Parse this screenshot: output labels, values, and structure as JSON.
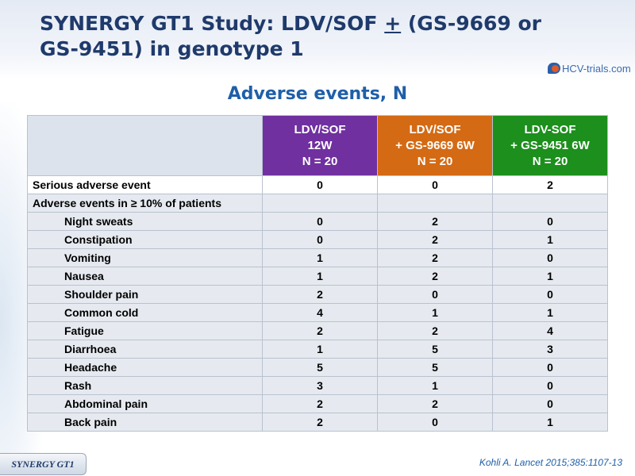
{
  "title": {
    "part1": "SYNERGY GT1 Study: LDV/SOF ",
    "plus": "+",
    "part2": " (GS-9669 or GS-9451) in genotype 1"
  },
  "logo": {
    "text": "HCV-trials.com"
  },
  "subtitle": "Adverse events, N",
  "colors": {
    "purple": "#7030a0",
    "orange": "#d46a14",
    "green": "#1c8f1c",
    "title": "#1f3a6b"
  },
  "table": {
    "columns": [
      {
        "line1": "LDV/SOF",
        "line2": "12W",
        "line3": "N = 20"
      },
      {
        "line1": "LDV/SOF",
        "line2": "+ GS-9669 6W",
        "line3": "N = 20"
      },
      {
        "line1": "LDV-SOF",
        "line2": "+ GS-9451 6W",
        "line3": "N = 20"
      }
    ],
    "rows": [
      {
        "label": "Serious adverse event",
        "values": [
          "0",
          "0",
          "2"
        ]
      },
      {
        "label": "Adverse events in ≥ 10% of patients",
        "values": [
          "",
          "",
          ""
        ]
      },
      {
        "label": "Night sweats",
        "values": [
          "0",
          "2",
          "0"
        ]
      },
      {
        "label": "Constipation",
        "values": [
          "0",
          "2",
          "1"
        ]
      },
      {
        "label": "Vomiting",
        "values": [
          "1",
          "2",
          "0"
        ]
      },
      {
        "label": "Nausea",
        "values": [
          "1",
          "2",
          "1"
        ]
      },
      {
        "label": "Shoulder pain",
        "values": [
          "2",
          "0",
          "0"
        ]
      },
      {
        "label": "Common cold",
        "values": [
          "4",
          "1",
          "1"
        ]
      },
      {
        "label": "Fatigue",
        "values": [
          "2",
          "2",
          "4"
        ]
      },
      {
        "label": "Diarrhoea",
        "values": [
          "1",
          "5",
          "3"
        ]
      },
      {
        "label": "Headache",
        "values": [
          "5",
          "5",
          "0"
        ]
      },
      {
        "label": "Rash",
        "values": [
          "3",
          "1",
          "0"
        ]
      },
      {
        "label": "Abdominal pain",
        "values": [
          "2",
          "2",
          "0"
        ]
      },
      {
        "label": "Back pain",
        "values": [
          "2",
          "0",
          "1"
        ]
      }
    ]
  },
  "footer": {
    "tag": "SYNERGY GT1",
    "citation": "Kohli A. Lancet 2015;385:1107-13"
  }
}
